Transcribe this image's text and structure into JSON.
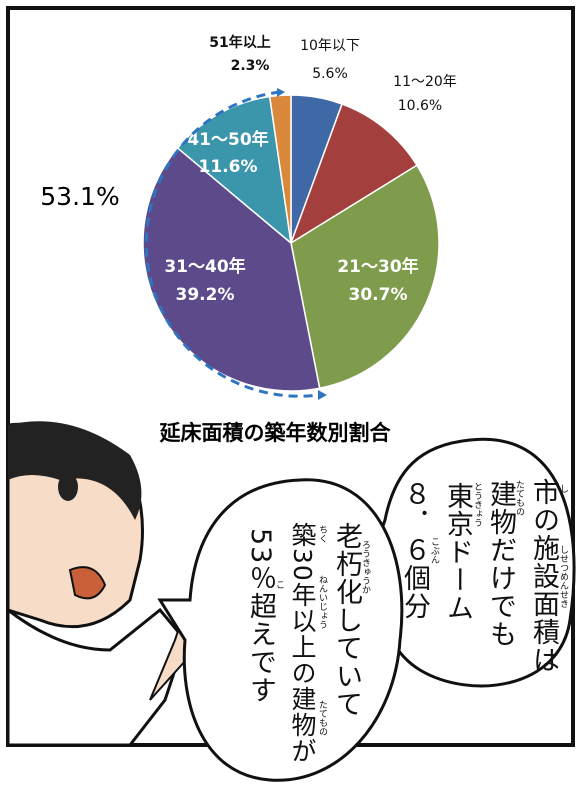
{
  "chart_data": {
    "type": "pie",
    "title": "延床面積の築年数別割合",
    "categories": [
      "10年以下",
      "11～20年",
      "21～30年",
      "31～40年",
      "41～50年",
      "51年以上"
    ],
    "values": [
      5.6,
      10.6,
      30.7,
      39.2,
      11.6,
      2.3
    ],
    "value_labels": [
      "5.6%",
      "10.6%",
      "30.7%",
      "39.2%",
      "11.6%",
      "2.3%"
    ],
    "colors": [
      "#3f68a6",
      "#a3403e",
      "#7f9c4c",
      "#5d4a8a",
      "#3b96ab",
      "#d9883c"
    ],
    "annotation": "53.1%"
  },
  "speech_bubbles": [
    {
      "lines": [
        "市の施設面積は",
        "建物だけでも",
        "東京ドーム",
        "８．６個分"
      ]
    },
    {
      "lines": [
        "老朽化していて",
        "築30年以上の建物が",
        "53％超えです"
      ]
    }
  ],
  "furigana": [
    "し",
    "たてもの",
    "しせつめんせき",
    "とうきょう",
    "こぶん",
    "ろうきゅうか",
    "ちく",
    "ねんいじょう",
    "たてもの",
    "こ"
  ]
}
